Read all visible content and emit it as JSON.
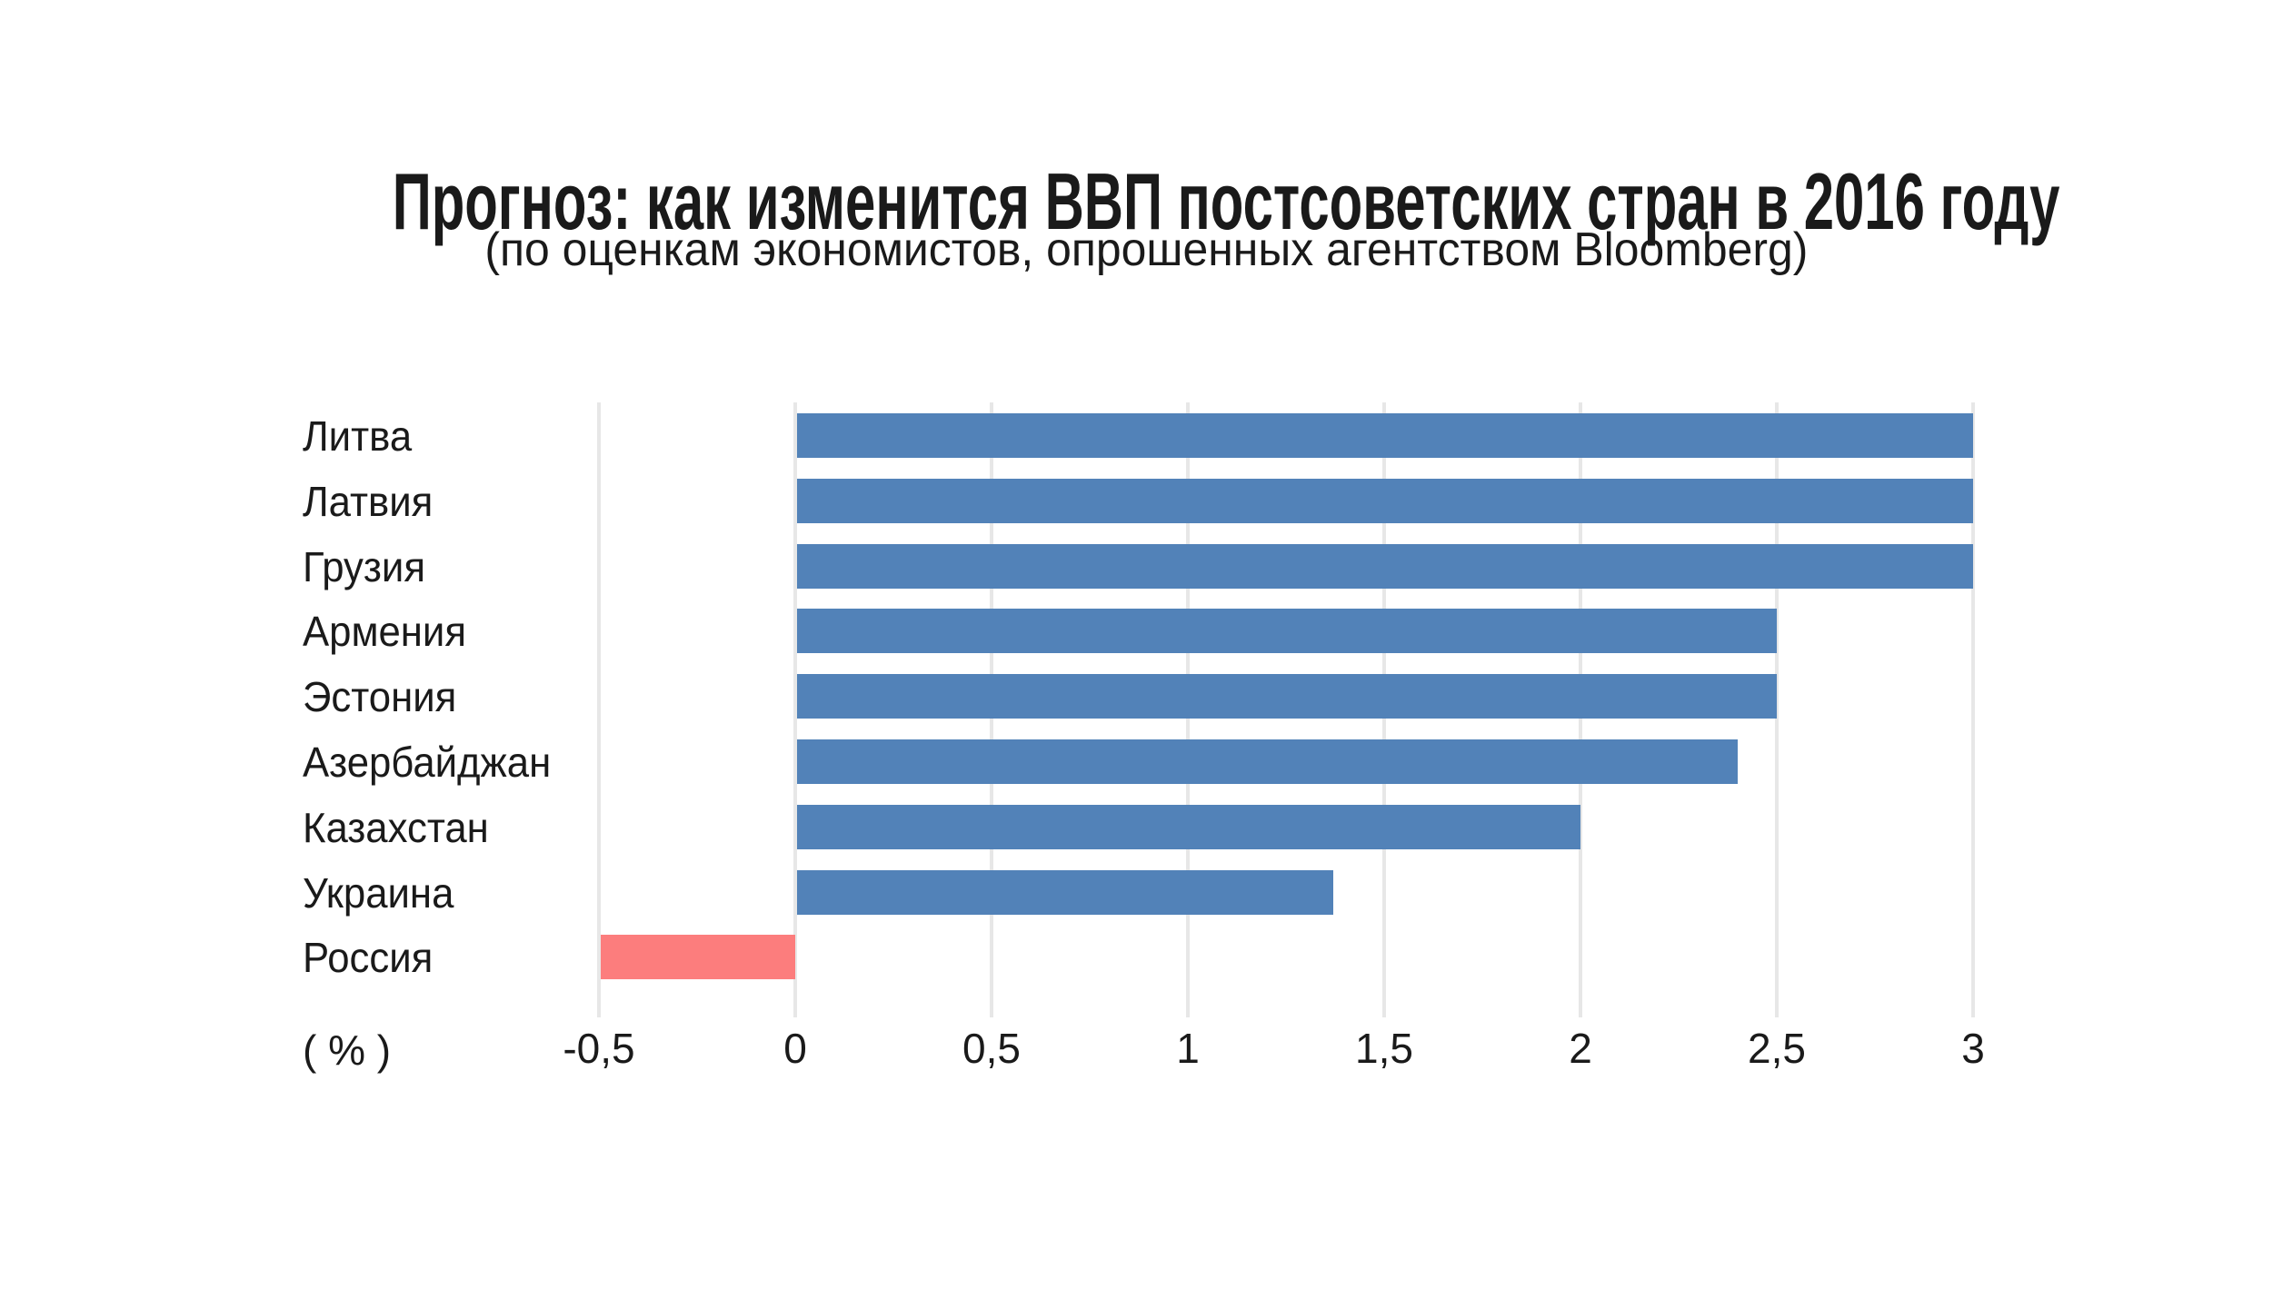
{
  "title": "Прогноз: как изменится ВВП постсоветских стран в 2016 году",
  "subtitle": "(по оценкам экономистов, опрошенных агентством Bloomberg)",
  "colors": {
    "positive_bar": "#5282B8",
    "negative_bar": "#FC7D7D",
    "gridline": "#E7E7E7",
    "text": "#1A1A1A",
    "background": "#FFFFFF"
  },
  "chart_data": {
    "type": "bar",
    "orientation": "horizontal",
    "title": "Прогноз: как изменится ВВП постсоветских стран в 2016 году",
    "subtitle": "(по оценкам экономистов, опрошенных агентством Bloomberg)",
    "xlabel": "( % )",
    "ylabel": "",
    "categories": [
      "Литва",
      "Латвия",
      "Грузия",
      "Армения",
      "Эстония",
      "Азербайджан",
      "Казахстан",
      "Украина",
      "Россия"
    ],
    "values": [
      3.0,
      3.0,
      3.0,
      2.5,
      2.5,
      2.4,
      2.0,
      1.37,
      -0.5
    ],
    "xlim": [
      -0.5,
      3
    ],
    "xticks": [
      -0.5,
      0,
      0.5,
      1,
      1.5,
      2,
      2.5,
      3
    ],
    "xtick_labels": [
      "-0,5",
      "0",
      "0,5",
      "1",
      "1,5",
      "2",
      "2,5",
      "3"
    ],
    "grid": true,
    "legend": false,
    "negative_categories": [
      "Россия"
    ]
  }
}
